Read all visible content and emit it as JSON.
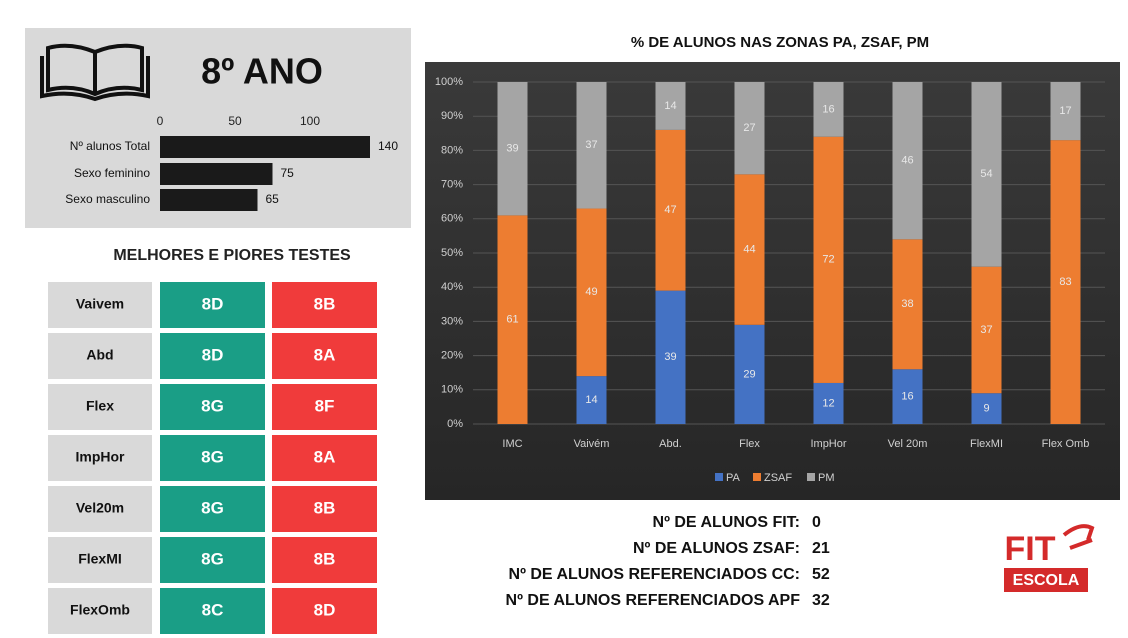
{
  "header": {
    "title": "8º ANO"
  },
  "chart_data": [
    {
      "type": "barh",
      "categories": [
        "Nº alunos Total",
        "Sexo feminino",
        "Sexo masculino"
      ],
      "values": [
        140,
        75,
        65
      ],
      "color": "#1a1a1a",
      "xlim": [
        0,
        140
      ],
      "xticks": [
        0,
        50,
        100
      ]
    },
    {
      "type": "stacked_bar",
      "title": "% DE ALUNOS NAS ZONAS PA, ZSAF, PM",
      "categories": [
        "IMC",
        "Vaivém",
        "Abd.",
        "Flex",
        "ImpHor",
        "Vel 20m",
        "FlexMI",
        "Flex Omb"
      ],
      "series": [
        {
          "name": "PA",
          "color": "#4472c4",
          "values": [
            0,
            14,
            39,
            29,
            12,
            16,
            9,
            0
          ]
        },
        {
          "name": "ZSAF",
          "color": "#ed7d31",
          "values": [
            61,
            49,
            47,
            44,
            72,
            38,
            37,
            83
          ]
        },
        {
          "name": "PM",
          "color": "#a5a5a5",
          "values": [
            39,
            37,
            14,
            27,
            16,
            46,
            54,
            17
          ]
        }
      ],
      "ylim": [
        0,
        100
      ],
      "yticks": [
        {
          "value": 0,
          "label": "0%"
        },
        {
          "value": 10,
          "label": "10%"
        },
        {
          "value": 20,
          "label": "20%"
        },
        {
          "value": 30,
          "label": "30%"
        },
        {
          "value": 40,
          "label": "40%"
        },
        {
          "value": 50,
          "label": "50%"
        },
        {
          "value": 60,
          "label": "60%"
        },
        {
          "value": 70,
          "label": "70%"
        },
        {
          "value": 80,
          "label": "80%"
        },
        {
          "value": 90,
          "label": "90%"
        },
        {
          "value": 100,
          "label": "100%"
        }
      ],
      "grid": true,
      "legend": "bottom"
    }
  ],
  "table": {
    "title": "MELHORES E PIORES TESTES",
    "rows": [
      [
        "Vaivem",
        "8D",
        "8B"
      ],
      [
        "Abd",
        "8D",
        "8A"
      ],
      [
        "Flex",
        "8G",
        "8F"
      ],
      [
        "ImpHor",
        "8G",
        "8A"
      ],
      [
        "Vel20m",
        "8G",
        "8B"
      ],
      [
        "FlexMI",
        "8G",
        "8B"
      ],
      [
        "FlexOmb",
        "8C",
        "8D"
      ]
    ]
  },
  "stats": [
    {
      "label": "Nº DE ALUNOS FIT:",
      "value": 0
    },
    {
      "label": "Nº DE ALUNOS ZSAF:",
      "value": 21
    },
    {
      "label": "Nº DE ALUNOS REFERENCIADOS CC:",
      "value": 52
    },
    {
      "label": "Nº DE ALUNOS REFERENCIADOS APF",
      "value": 32
    }
  ],
  "logo": {
    "top": "FIT",
    "bottom": "ESCOLA"
  }
}
